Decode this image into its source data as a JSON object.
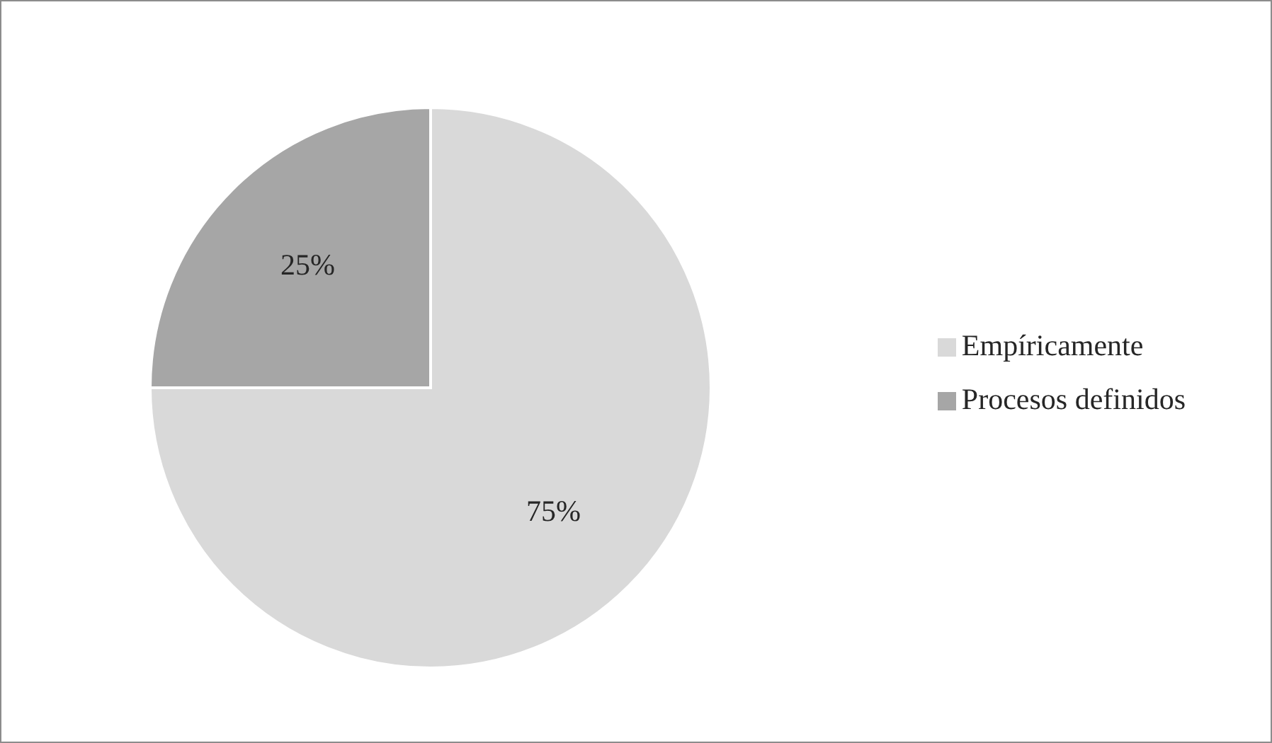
{
  "chart_data": {
    "type": "pie",
    "categories": [
      "Empíricamente",
      "Procesos definidos"
    ],
    "values": [
      75,
      25
    ],
    "colors": [
      "#d9d9d9",
      "#a6a6a6"
    ],
    "value_labels": [
      "75%",
      "25%"
    ],
    "legend": "right"
  }
}
